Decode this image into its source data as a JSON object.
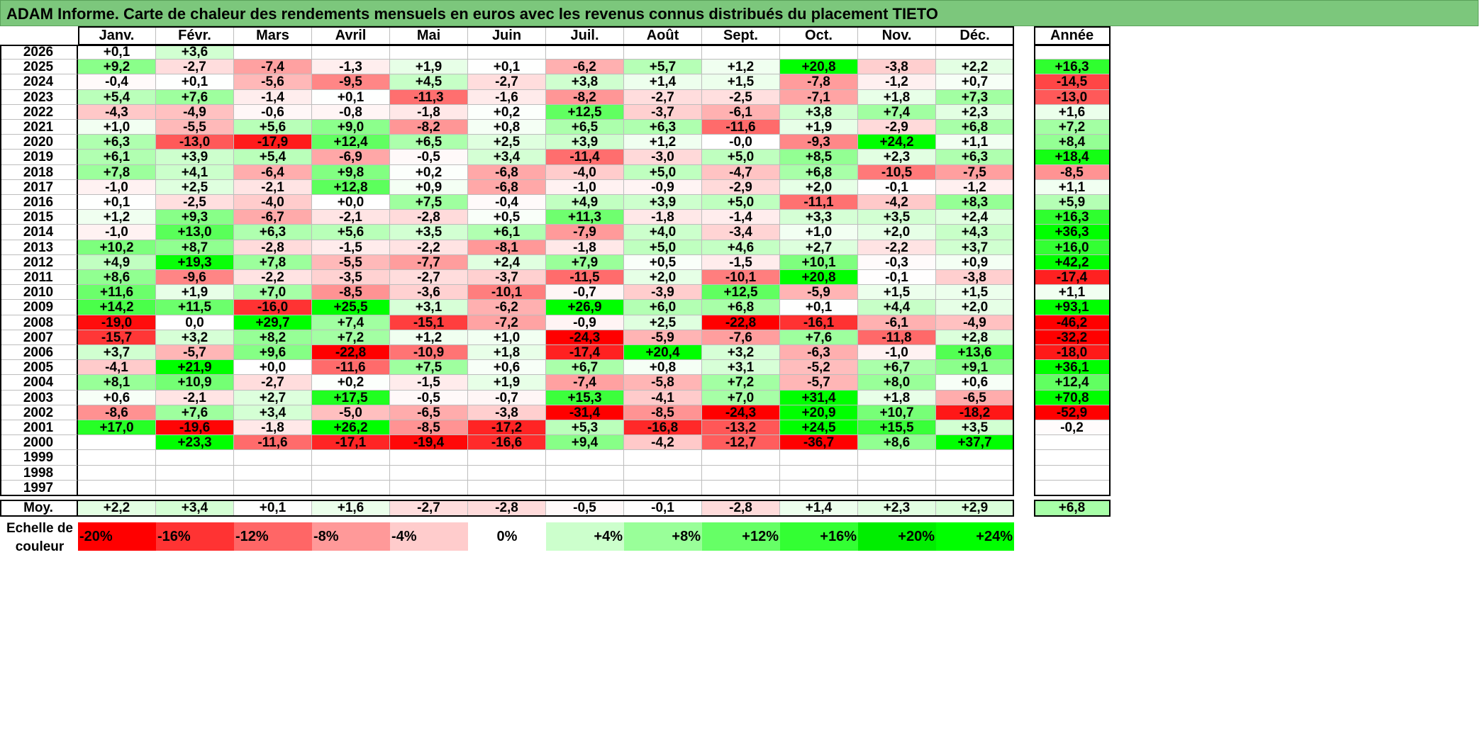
{
  "title": "ADAM Informe. Carte de chaleur des rendements mensuels en euros avec les revenus connus distribués du placement TIETO",
  "chart_data": {
    "type": "heatmap",
    "months": [
      "Janv.",
      "Févr.",
      "Mars",
      "Avril",
      "Mai",
      "Juin",
      "Juil.",
      "Août",
      "Sept.",
      "Oct.",
      "Nov.",
      "Déc."
    ],
    "year_header": "Année",
    "average_label": "Moy.",
    "rows": [
      {
        "year": "2026",
        "values": [
          "+0,1",
          "+3,6",
          "",
          "",
          "",
          "",
          "",
          "",
          "",
          "",
          "",
          ""
        ],
        "annual": ""
      },
      {
        "year": "2025",
        "values": [
          "+9,2",
          "-2,7",
          "-7,4",
          "-1,3",
          "+1,9",
          "+0,1",
          "-6,2",
          "+5,7",
          "+1,2",
          "+20,8",
          "-3,8",
          "+2,2"
        ],
        "annual": "+16,3"
      },
      {
        "year": "2024",
        "values": [
          "-0,4",
          "+0,1",
          "-5,6",
          "-9,5",
          "+4,5",
          "-2,7",
          "+3,8",
          "+1,4",
          "+1,5",
          "-7,8",
          "-1,2",
          "+0,7"
        ],
        "annual": "-14,5"
      },
      {
        "year": "2023",
        "values": [
          "+5,4",
          "+7,6",
          "-1,4",
          "+0,1",
          "-11,3",
          "-1,6",
          "-8,2",
          "-2,7",
          "-2,5",
          "-7,1",
          "+1,8",
          "+7,3"
        ],
        "annual": "-13,0"
      },
      {
        "year": "2022",
        "values": [
          "-4,3",
          "-4,9",
          "-0,6",
          "-0,8",
          "-1,8",
          "+0,2",
          "+12,5",
          "-3,7",
          "-6,1",
          "+3,8",
          "+7,4",
          "+2,3"
        ],
        "annual": "+1,6"
      },
      {
        "year": "2021",
        "values": [
          "+1,0",
          "-5,5",
          "+5,6",
          "+9,0",
          "-8,2",
          "+0,8",
          "+6,5",
          "+6,3",
          "-11,6",
          "+1,9",
          "-2,9",
          "+6,8"
        ],
        "annual": "+7,2"
      },
      {
        "year": "2020",
        "values": [
          "+6,3",
          "-13,0",
          "-17,9",
          "+12,4",
          "+6,5",
          "+2,5",
          "+3,9",
          "+1,2",
          "-0,0",
          "-9,3",
          "+24,2",
          "+1,1"
        ],
        "annual": "+8,4"
      },
      {
        "year": "2019",
        "values": [
          "+6,1",
          "+3,9",
          "+5,4",
          "-6,9",
          "-0,5",
          "+3,4",
          "-11,4",
          "-3,0",
          "+5,0",
          "+8,5",
          "+2,3",
          "+6,3"
        ],
        "annual": "+18,4"
      },
      {
        "year": "2018",
        "values": [
          "+7,8",
          "+4,1",
          "-6,4",
          "+9,8",
          "+0,2",
          "-6,8",
          "-4,0",
          "+5,0",
          "-4,7",
          "+6,8",
          "-10,5",
          "-7,5"
        ],
        "annual": "-8,5"
      },
      {
        "year": "2017",
        "values": [
          "-1,0",
          "+2,5",
          "-2,1",
          "+12,8",
          "+0,9",
          "-6,8",
          "-1,0",
          "-0,9",
          "-2,9",
          "+2,0",
          "-0,1",
          "-1,2"
        ],
        "annual": "+1,1"
      },
      {
        "year": "2016",
        "values": [
          "+0,1",
          "-2,5",
          "-4,0",
          "+0,0",
          "+7,5",
          "-0,4",
          "+4,9",
          "+3,9",
          "+5,0",
          "-11,1",
          "-4,2",
          "+8,3"
        ],
        "annual": "+5,9"
      },
      {
        "year": "2015",
        "values": [
          "+1,2",
          "+9,3",
          "-6,7",
          "-2,1",
          "-2,8",
          "+0,5",
          "+11,3",
          "-1,8",
          "-1,4",
          "+3,3",
          "+3,5",
          "+2,4"
        ],
        "annual": "+16,3"
      },
      {
        "year": "2014",
        "values": [
          "-1,0",
          "+13,0",
          "+6,3",
          "+5,6",
          "+3,5",
          "+6,1",
          "-7,9",
          "+4,0",
          "-3,4",
          "+1,0",
          "+2,0",
          "+4,3"
        ],
        "annual": "+36,3"
      },
      {
        "year": "2013",
        "values": [
          "+10,2",
          "+8,7",
          "-2,8",
          "-1,5",
          "-2,2",
          "-8,1",
          "-1,8",
          "+5,0",
          "+4,6",
          "+2,7",
          "-2,2",
          "+3,7"
        ],
        "annual": "+16,0"
      },
      {
        "year": "2012",
        "values": [
          "+4,9",
          "+19,3",
          "+7,8",
          "-5,5",
          "-7,7",
          "+2,4",
          "+7,9",
          "+0,5",
          "-1,5",
          "+10,1",
          "-0,3",
          "+0,9"
        ],
        "annual": "+42,2"
      },
      {
        "year": "2011",
        "values": [
          "+8,6",
          "-9,6",
          "-2,2",
          "-3,5",
          "-2,7",
          "-3,7",
          "-11,5",
          "+2,0",
          "-10,1",
          "+20,8",
          "-0,1",
          "-3,8"
        ],
        "annual": "-17,4"
      },
      {
        "year": "2010",
        "values": [
          "+11,6",
          "+1,9",
          "+7,0",
          "-8,5",
          "-3,6",
          "-10,1",
          "-0,7",
          "-3,9",
          "+12,5",
          "-5,9",
          "+1,5",
          "+1,5"
        ],
        "annual": "+1,1"
      },
      {
        "year": "2009",
        "values": [
          "+14,2",
          "+11,5",
          "-16,0",
          "+25,5",
          "+3,1",
          "-6,2",
          "+26,9",
          "+6,0",
          "+6,8",
          "+0,1",
          "+4,4",
          "+2,0"
        ],
        "annual": "+93,1"
      },
      {
        "year": "2008",
        "values": [
          "-19,0",
          "0,0",
          "+29,7",
          "+7,4",
          "-15,1",
          "-7,2",
          "-0,9",
          "+2,5",
          "-22,8",
          "-16,1",
          "-6,1",
          "-4,9"
        ],
        "annual": "-46,2"
      },
      {
        "year": "2007",
        "values": [
          "-15,7",
          "+3,2",
          "+8,2",
          "+7,2",
          "+1,2",
          "+1,0",
          "-24,3",
          "-5,9",
          "-7,6",
          "+7,6",
          "-11,8",
          "+2,8"
        ],
        "annual": "-32,2"
      },
      {
        "year": "2006",
        "values": [
          "+3,7",
          "-5,7",
          "+9,6",
          "-22,8",
          "-10,9",
          "+1,8",
          "-17,4",
          "+20,4",
          "+3,2",
          "-6,3",
          "-1,0",
          "+13,6"
        ],
        "annual": "-18,0"
      },
      {
        "year": "2005",
        "values": [
          "-4,1",
          "+21,9",
          "+0,0",
          "-11,6",
          "+7,5",
          "+0,6",
          "+6,7",
          "+0,8",
          "+3,1",
          "-5,2",
          "+6,7",
          "+9,1"
        ],
        "annual": "+36,1"
      },
      {
        "year": "2004",
        "values": [
          "+8,1",
          "+10,9",
          "-2,7",
          "+0,2",
          "-1,5",
          "+1,9",
          "-7,4",
          "-5,8",
          "+7,2",
          "-5,7",
          "+8,0",
          "+0,6"
        ],
        "annual": "+12,4"
      },
      {
        "year": "2003",
        "values": [
          "+0,6",
          "-2,1",
          "+2,7",
          "+17,5",
          "-0,5",
          "-0,7",
          "+15,3",
          "-4,1",
          "+7,0",
          "+31,4",
          "+1,8",
          "-6,5"
        ],
        "annual": "+70,8"
      },
      {
        "year": "2002",
        "values": [
          "-8,6",
          "+7,6",
          "+3,4",
          "-5,0",
          "-6,5",
          "-3,8",
          "-31,4",
          "-8,5",
          "-24,3",
          "+20,9",
          "+10,7",
          "-18,2"
        ],
        "annual": "-52,9"
      },
      {
        "year": "2001",
        "values": [
          "+17,0",
          "-19,6",
          "-1,8",
          "+26,2",
          "-8,5",
          "-17,2",
          "+5,3",
          "-16,8",
          "-13,2",
          "+24,5",
          "+15,5",
          "+3,5"
        ],
        "annual": "-0,2"
      },
      {
        "year": "2000",
        "values": [
          "",
          "+23,3",
          "-11,6",
          "-17,1",
          "-19,4",
          "-16,6",
          "+9,4",
          "-4,2",
          "-12,7",
          "-36,7",
          "+8,6",
          "+37,7"
        ],
        "annual": ""
      },
      {
        "year": "1999",
        "values": [
          "",
          "",
          "",
          "",
          "",
          "",
          "",
          "",
          "",
          "",
          "",
          ""
        ],
        "annual": ""
      },
      {
        "year": "1998",
        "values": [
          "",
          "",
          "",
          "",
          "",
          "",
          "",
          "",
          "",
          "",
          "",
          ""
        ],
        "annual": ""
      },
      {
        "year": "1997",
        "values": [
          "",
          "",
          "",
          "",
          "",
          "",
          "",
          "",
          "",
          "",
          "",
          ""
        ],
        "annual": ""
      }
    ],
    "averages": [
      "+2,2",
      "+3,4",
      "+0,1",
      "+1,6",
      "-2,7",
      "-2,8",
      "-0,5",
      "-0,1",
      "-2,8",
      "+1,4",
      "+2,3",
      "+2,9"
    ],
    "average_annual": "+6,8",
    "scale_label": "Echelle de couleur",
    "scale": [
      {
        "label": "-20%",
        "color": "#ff0000"
      },
      {
        "label": "-16%",
        "color": "#ff3333"
      },
      {
        "label": "-12%",
        "color": "#ff6666"
      },
      {
        "label": "-8%",
        "color": "#ff9999"
      },
      {
        "label": "-4%",
        "color": "#ffcccc"
      },
      {
        "label": "0%",
        "color": "#ffffff"
      },
      {
        "label": "+4%",
        "color": "#ccffcc"
      },
      {
        "label": "+8%",
        "color": "#99ff99"
      },
      {
        "label": "+12%",
        "color": "#66ff66"
      },
      {
        "label": "+16%",
        "color": "#33ff33"
      },
      {
        "label": "+20%",
        "color": "#00ee00"
      },
      {
        "label": "+24%",
        "color": "#00ff00"
      }
    ]
  }
}
